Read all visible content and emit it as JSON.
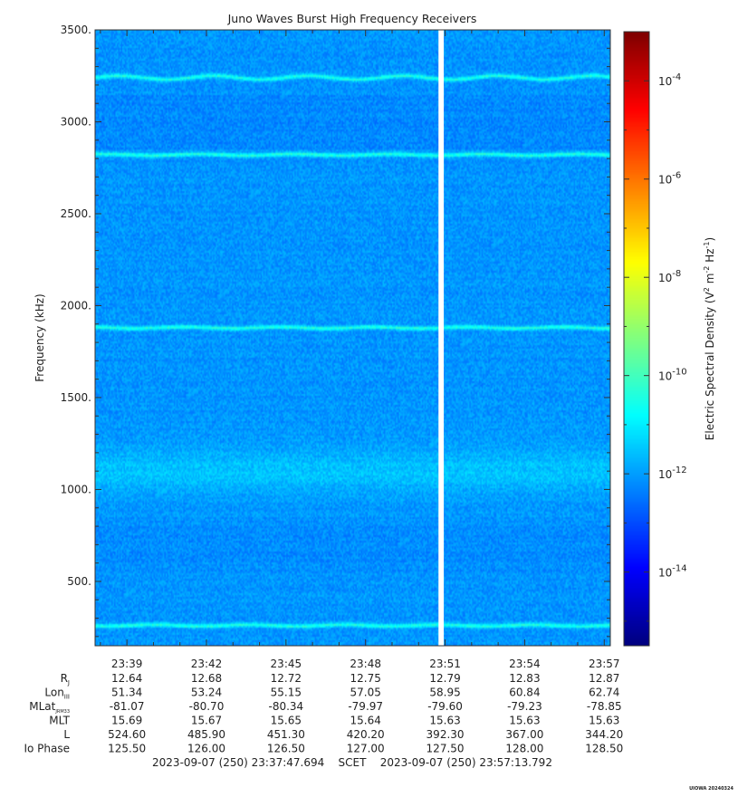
{
  "chart_data": {
    "type": "heatmap",
    "title": "Juno Waves Burst High Frequency Receivers",
    "ylabel": "Frequency (kHz)",
    "ylim": [
      150,
      3500
    ],
    "y_ticks": [
      "3500.",
      "3000.",
      "2500.",
      "2000.",
      "1500.",
      "1000.",
      "500."
    ],
    "y_tick_values": [
      3500,
      3000,
      2500,
      2000,
      1500,
      1000,
      500
    ],
    "x_tick_labels": [
      "23:39",
      "23:42",
      "23:45",
      "23:48",
      "23:51",
      "23:54",
      "23:57"
    ],
    "x_tick_minutes": [
      1.2,
      4.2,
      7.2,
      10.2,
      13.2,
      16.2,
      19.2
    ],
    "x_range_minutes": [
      0,
      19.43
    ],
    "data_gap_minutes": [
      12.95,
      13.15
    ],
    "emission_lines_khz": [
      3240,
      2820,
      1880,
      1100,
      260
    ],
    "colorbar": {
      "label": "Electric Spectral Density (V² m⁻² Hz⁻¹)",
      "label_main": "Electric Spectral Density (V",
      "label_sup1": "2",
      "label_mid1": " m",
      "label_sup2": "-2",
      "label_mid2": " Hz",
      "label_sup3": "-1",
      "label_end": ")",
      "log_range": [
        -15.5,
        -3.0
      ],
      "ticks": [
        {
          "base": "10",
          "exp": "-4",
          "log": -4
        },
        {
          "base": "10",
          "exp": "-6",
          "log": -6
        },
        {
          "base": "10",
          "exp": "-8",
          "log": -8
        },
        {
          "base": "10",
          "exp": "-10",
          "log": -10
        },
        {
          "base": "10",
          "exp": "-12",
          "log": -12
        },
        {
          "base": "10",
          "exp": "-14",
          "log": -14
        }
      ]
    },
    "ephemeris": [
      {
        "label": "R",
        "sub": "J",
        "values": [
          "12.64",
          "12.68",
          "12.72",
          "12.75",
          "12.79",
          "12.83",
          "12.87"
        ]
      },
      {
        "label": "Lon",
        "sub": "III",
        "values": [
          "51.34",
          "53.24",
          "55.15",
          "57.05",
          "58.95",
          "60.84",
          "62.74"
        ]
      },
      {
        "label": "MLat",
        "sub": "JRM33",
        "values": [
          "-81.07",
          "-80.70",
          "-80.34",
          "-79.97",
          "-79.60",
          "-79.23",
          "-78.85"
        ]
      },
      {
        "label": "MLT",
        "sub": "",
        "values": [
          "15.69",
          "15.67",
          "15.65",
          "15.64",
          "15.63",
          "15.63",
          "15.63"
        ]
      },
      {
        "label": "L",
        "sub": "",
        "values": [
          "524.60",
          "485.90",
          "451.30",
          "420.20",
          "392.30",
          "367.00",
          "344.20"
        ]
      },
      {
        "label": "Io Phase",
        "sub": "",
        "values": [
          "125.50",
          "126.00",
          "126.50",
          "127.00",
          "127.50",
          "128.00",
          "128.50"
        ]
      }
    ],
    "time_span": "2023-09-07 (250) 23:37:47.694    SCET    2023-09-07 (250) 23:57:13.792",
    "footer": "UIOWA 20240324"
  }
}
